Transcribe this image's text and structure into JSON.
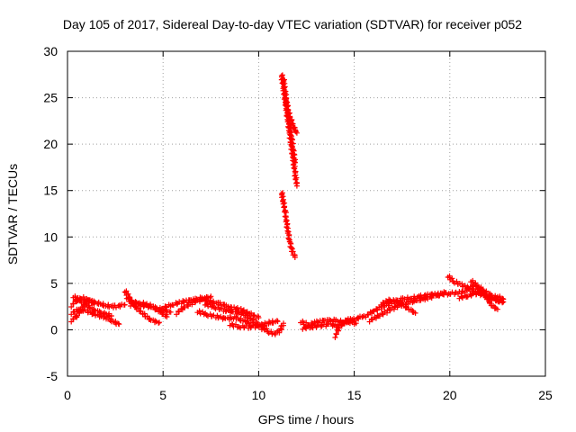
{
  "chart_data": {
    "type": "scatter",
    "title": "Day 105 of 2017, Sidereal Day-to-day VTEC variation (SDTVAR) for receiver p052",
    "xlabel": "GPS time / hours",
    "ylabel": "SDTVAR / TECUs",
    "xlim": [
      0,
      25
    ],
    "ylim": [
      -5,
      30
    ],
    "xticks": [
      "0",
      "5",
      "10",
      "15",
      "20",
      "25"
    ],
    "yticks": [
      "-5",
      "0",
      "5",
      "10",
      "15",
      "20",
      "25",
      "30"
    ],
    "grid": true,
    "marker": "+",
    "color": "#ff0000",
    "series": [
      {
        "name": "SDTVAR",
        "tracks": [
          [
            [
              0.2,
              2.6
            ],
            [
              0.5,
              3.2
            ],
            [
              0.8,
              3.4
            ],
            [
              1.2,
              3.1
            ],
            [
              1.6,
              2.9
            ],
            [
              2.0,
              2.6
            ],
            [
              2.5,
              2.5
            ],
            [
              3.0,
              2.7
            ]
          ],
          [
            [
              0.2,
              1.8
            ],
            [
              0.6,
              2.2
            ],
            [
              1.0,
              2.0
            ],
            [
              1.5,
              1.6
            ],
            [
              2.0,
              1.3
            ],
            [
              2.4,
              0.9
            ],
            [
              2.7,
              0.6
            ]
          ],
          [
            [
              0.3,
              3.6
            ],
            [
              0.7,
              3.1
            ],
            [
              1.1,
              2.5
            ],
            [
              1.5,
              2.0
            ],
            [
              1.9,
              1.8
            ],
            [
              2.3,
              1.5
            ]
          ],
          [
            [
              0.2,
              1.0
            ],
            [
              0.5,
              1.5
            ],
            [
              0.8,
              2.5
            ],
            [
              1.1,
              3.2
            ],
            [
              1.4,
              2.8
            ]
          ],
          [
            [
              3.0,
              4.2
            ],
            [
              3.4,
              3.0
            ],
            [
              3.9,
              2.6
            ],
            [
              4.4,
              2.5
            ],
            [
              4.9,
              2.2
            ],
            [
              5.4,
              1.9
            ]
          ],
          [
            [
              3.1,
              3.5
            ],
            [
              3.6,
              2.4
            ],
            [
              4.0,
              1.6
            ],
            [
              4.4,
              1.0
            ],
            [
              4.8,
              0.8
            ]
          ],
          [
            [
              3.3,
              2.7
            ],
            [
              3.8,
              2.9
            ],
            [
              4.3,
              2.6
            ],
            [
              4.8,
              2.0
            ],
            [
              5.2,
              1.4
            ]
          ],
          [
            [
              5.0,
              2.4
            ],
            [
              5.5,
              2.7
            ],
            [
              6.0,
              3.0
            ],
            [
              6.5,
              3.2
            ],
            [
              7.0,
              3.4
            ],
            [
              7.5,
              3.0
            ],
            [
              8.0,
              2.8
            ],
            [
              8.5,
              2.4
            ],
            [
              9.0,
              2.2
            ],
            [
              9.5,
              1.8
            ],
            [
              10.0,
              1.3
            ]
          ],
          [
            [
              5.7,
              1.8
            ],
            [
              6.1,
              2.4
            ],
            [
              6.6,
              3.0
            ],
            [
              7.1,
              3.3
            ],
            [
              7.5,
              3.6
            ]
          ],
          [
            [
              6.8,
              2.0
            ],
            [
              7.3,
              1.6
            ],
            [
              7.8,
              1.4
            ],
            [
              8.3,
              1.2
            ],
            [
              8.8,
              1.3
            ],
            [
              9.3,
              0.9
            ],
            [
              9.8,
              0.6
            ]
          ],
          [
            [
              7.2,
              2.8
            ],
            [
              7.7,
              2.4
            ],
            [
              8.2,
              2.1
            ],
            [
              8.7,
              1.9
            ],
            [
              9.2,
              1.7
            ],
            [
              9.6,
              1.2
            ],
            [
              10.0,
              0.5
            ],
            [
              10.3,
              0.0
            ]
          ],
          [
            [
              8.5,
              0.6
            ],
            [
              9.0,
              0.3
            ],
            [
              9.5,
              0.3
            ],
            [
              10.0,
              0.4
            ],
            [
              10.3,
              0.6
            ],
            [
              10.6,
              0.8
            ],
            [
              11.0,
              0.9
            ]
          ],
          [
            [
              10.2,
              0.4
            ],
            [
              10.5,
              -0.2
            ],
            [
              10.8,
              -0.5
            ],
            [
              11.1,
              -0.1
            ],
            [
              11.3,
              0.7
            ]
          ],
          [
            [
              11.2,
              27.5
            ],
            [
              11.3,
              26.0
            ],
            [
              11.4,
              24.5
            ],
            [
              11.5,
              23.0
            ],
            [
              11.6,
              21.5
            ],
            [
              11.7,
              20.0
            ],
            [
              11.8,
              18.5
            ],
            [
              11.9,
              17.0
            ],
            [
              12.0,
              15.5
            ]
          ],
          [
            [
              11.4,
              25.0
            ],
            [
              11.55,
              23.5
            ],
            [
              11.7,
              22.5
            ],
            [
              11.85,
              21.8
            ],
            [
              12.0,
              21.2
            ]
          ],
          [
            [
              11.3,
              27.0
            ],
            [
              11.4,
              25.5
            ],
            [
              11.5,
              24.0
            ],
            [
              11.6,
              22.5
            ],
            [
              11.7,
              21.0
            ],
            [
              11.8,
              19.5
            ],
            [
              11.9,
              18.0
            ]
          ],
          [
            [
              11.2,
              14.8
            ],
            [
              11.3,
              13.8
            ],
            [
              11.4,
              12.5
            ],
            [
              11.5,
              11.0
            ],
            [
              11.6,
              9.8
            ],
            [
              11.7,
              8.9
            ],
            [
              11.8,
              8.3
            ],
            [
              11.9,
              7.8
            ]
          ],
          [
            [
              12.2,
              0.9
            ],
            [
              12.6,
              0.5
            ],
            [
              13.0,
              0.8
            ],
            [
              13.5,
              1.0
            ],
            [
              14.0,
              1.0
            ],
            [
              14.5,
              0.8
            ],
            [
              15.0,
              1.1
            ],
            [
              15.5,
              1.5
            ]
          ],
          [
            [
              12.3,
              0.2
            ],
            [
              12.8,
              0.3
            ],
            [
              13.2,
              0.4
            ],
            [
              13.7,
              0.6
            ],
            [
              14.1,
              0.4
            ],
            [
              14.6,
              0.9
            ],
            [
              15.1,
              0.7
            ]
          ],
          [
            [
              14.0,
              -0.7
            ],
            [
              14.2,
              0.2
            ],
            [
              14.5,
              0.9
            ],
            [
              14.8,
              1.2
            ]
          ],
          [
            [
              15.6,
              1.5
            ],
            [
              16.0,
              2.0
            ],
            [
              16.5,
              2.5
            ],
            [
              17.0,
              3.0
            ],
            [
              17.5,
              3.3
            ],
            [
              18.0,
              3.4
            ],
            [
              18.5,
              3.6
            ],
            [
              19.0,
              3.8
            ],
            [
              19.5,
              3.8
            ],
            [
              20.0,
              3.9
            ],
            [
              20.5,
              4.0
            ],
            [
              21.0,
              4.3
            ],
            [
              21.5,
              4.2
            ],
            [
              22.0,
              3.5
            ],
            [
              22.5,
              3.2
            ],
            [
              22.8,
              3.0
            ]
          ],
          [
            [
              15.8,
              1.0
            ],
            [
              16.3,
              1.5
            ],
            [
              16.8,
              2.1
            ],
            [
              17.3,
              2.6
            ],
            [
              17.8,
              2.9
            ],
            [
              18.3,
              3.2
            ],
            [
              18.8,
              3.4
            ],
            [
              19.3,
              3.7
            ],
            [
              19.8,
              4.0
            ]
          ],
          [
            [
              16.4,
              2.8
            ],
            [
              16.9,
              3.2
            ],
            [
              17.4,
              2.8
            ],
            [
              17.9,
              2.2
            ],
            [
              18.2,
              1.8
            ]
          ],
          [
            [
              19.9,
              5.8
            ],
            [
              20.2,
              5.2
            ],
            [
              20.6,
              4.8
            ],
            [
              21.0,
              4.5
            ],
            [
              21.4,
              4.8
            ],
            [
              21.8,
              4.2
            ],
            [
              22.2,
              3.6
            ],
            [
              22.6,
              3.0
            ]
          ],
          [
            [
              21.1,
              5.3
            ],
            [
              21.5,
              4.6
            ],
            [
              21.9,
              3.5
            ],
            [
              22.2,
              2.6
            ],
            [
              22.5,
              2.2
            ]
          ],
          [
            [
              20.5,
              3.5
            ],
            [
              20.9,
              3.6
            ],
            [
              21.3,
              3.9
            ],
            [
              21.7,
              3.8
            ],
            [
              22.1,
              3.4
            ],
            [
              22.5,
              3.6
            ],
            [
              22.8,
              3.3
            ]
          ]
        ]
      }
    ]
  }
}
